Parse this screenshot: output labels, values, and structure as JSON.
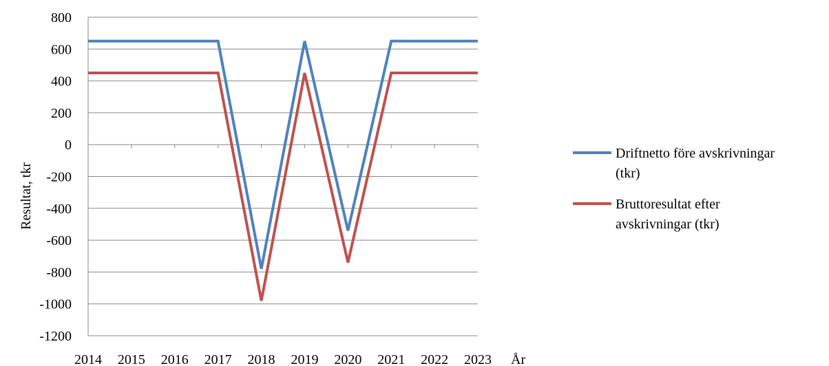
{
  "chart_data": {
    "type": "line",
    "title": "",
    "xlabel": "År",
    "ylabel": "Resultat, tkr",
    "categories": [
      "2014",
      "2015",
      "2016",
      "2017",
      "2018",
      "2019",
      "2020",
      "2021",
      "2022",
      "2023"
    ],
    "ylim": [
      -1200,
      800
    ],
    "yticks": [
      800,
      600,
      400,
      200,
      0,
      -200,
      -400,
      -600,
      -800,
      -1000,
      -1200
    ],
    "grid": true,
    "legend_position": "right",
    "series": [
      {
        "name": "Driftnetto före avskrivningar (tkr)",
        "name_lines": [
          "Driftnetto före avskrivningar",
          "(tkr)"
        ],
        "color": "#4F81BD",
        "values": [
          650,
          650,
          650,
          650,
          -780,
          650,
          -540,
          650,
          650,
          650
        ]
      },
      {
        "name": "Bruttoresultat efter avskrivningar (tkr)",
        "name_lines": [
          "Bruttoresultat efter",
          "avskrivningar (tkr)"
        ],
        "color": "#C0504D",
        "values": [
          450,
          450,
          450,
          450,
          -980,
          450,
          -740,
          450,
          450,
          450
        ]
      }
    ]
  }
}
